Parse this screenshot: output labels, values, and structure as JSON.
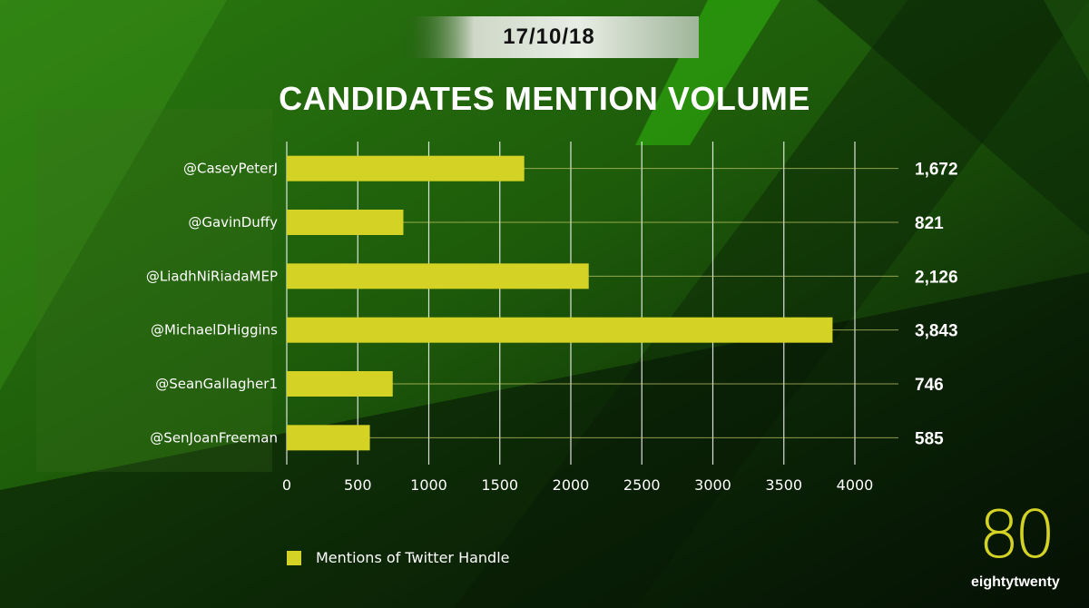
{
  "date": "17/10/18",
  "colors": {
    "bar": "#d4d224",
    "accent": "#2fb80e",
    "background_dark": "#0a1a06"
  },
  "legend": {
    "label": "Mentions of Twitter Handle"
  },
  "logo": {
    "number": "80",
    "word": "eightytwenty"
  },
  "chart_data": {
    "type": "bar",
    "orientation": "horizontal",
    "title": "CANDIDATES MENTION VOLUME",
    "categories": [
      "@CaseyPeterJ",
      "@GavinDuffy",
      "@LiadhNiRiadaMEP",
      "@MichaelDHiggins",
      "@SeanGallagher1",
      "@SenJoanFreeman"
    ],
    "series": [
      {
        "name": "Mentions of Twitter Handle",
        "values": [
          1672,
          821,
          2126,
          3843,
          746,
          585
        ]
      }
    ],
    "value_labels": [
      "1,672",
      "821",
      "2,126",
      "3,843",
      "746",
      "585"
    ],
    "xticks": [
      0,
      500,
      1000,
      1500,
      2000,
      2500,
      3000,
      3500,
      4000
    ],
    "xlim": [
      0,
      4300
    ],
    "grid": true,
    "legend_position": "bottom-left"
  }
}
